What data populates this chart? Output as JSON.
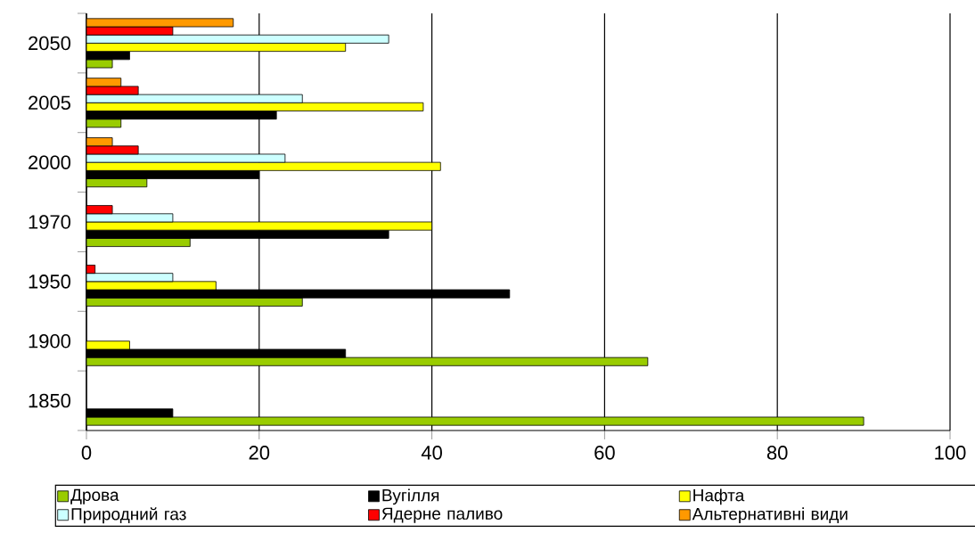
{
  "chart_data": {
    "type": "bar",
    "orientation": "horizontal",
    "categories": [
      "2050",
      "2005",
      "2000",
      "1970",
      "1950",
      "1900",
      "1850"
    ],
    "series": [
      {
        "name": "Дрова",
        "color": "#99cc00",
        "values": [
          3,
          4,
          7,
          12,
          25,
          65,
          90
        ]
      },
      {
        "name": "Вугілля",
        "color": "#000000",
        "values": [
          5,
          22,
          20,
          35,
          49,
          30,
          10
        ]
      },
      {
        "name": "Нафта",
        "color": "#ffff00",
        "values": [
          30,
          39,
          41,
          40,
          15,
          5,
          null
        ]
      },
      {
        "name": "Природний газ",
        "color": "#ccffff",
        "values": [
          35,
          25,
          23,
          10,
          10,
          null,
          null
        ]
      },
      {
        "name": "Ядерне паливо",
        "color": "#ff0000",
        "values": [
          10,
          6,
          6,
          3,
          1,
          null,
          null
        ]
      },
      {
        "name": "Альтернативні види",
        "color": "#ff9900",
        "values": [
          17,
          4,
          3,
          null,
          null,
          null,
          null
        ]
      }
    ],
    "xlim": [
      0,
      100
    ],
    "xticks": [
      0,
      20,
      40,
      60,
      80,
      100
    ],
    "grid": "x",
    "legend": "bottom"
  }
}
